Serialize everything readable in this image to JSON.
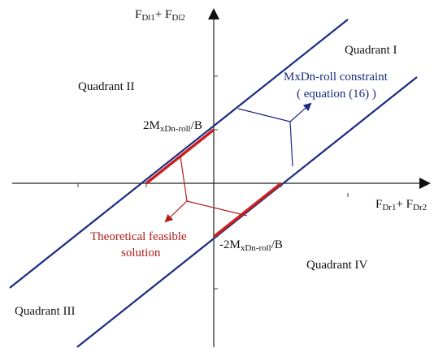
{
  "axes": {
    "y_label": {
      "main1": "F",
      "sub1": "Dl1",
      "plus": "+ F",
      "sub2": "Dl2"
    },
    "x_label": {
      "main1": "F",
      "sub1": "Dr1",
      "plus": "+ F",
      "sub2": "Dr2"
    }
  },
  "quadrants": {
    "q1": "Quadrant I",
    "q2": "Quadrant II",
    "q3": "Quadrant III",
    "q4": "Quadrant IV"
  },
  "constraint": {
    "line1": "MxDn-roll constraint",
    "line2": "( equation (16) )"
  },
  "upper_intercept": {
    "prefix": "2M",
    "sub": "xDn-roll",
    "suffix": "/B"
  },
  "lower_intercept": {
    "prefix": "-2M",
    "sub": "xDn-roll",
    "suffix": "/B"
  },
  "feasible": {
    "line1": "Theoretical feasible",
    "line2": "solution"
  },
  "colors": {
    "boundary": "#1c2a80",
    "feasible": "#c8201e",
    "axis": "#222222",
    "leader_blue": "#1c2a80",
    "leader_red": "#b02020"
  }
}
